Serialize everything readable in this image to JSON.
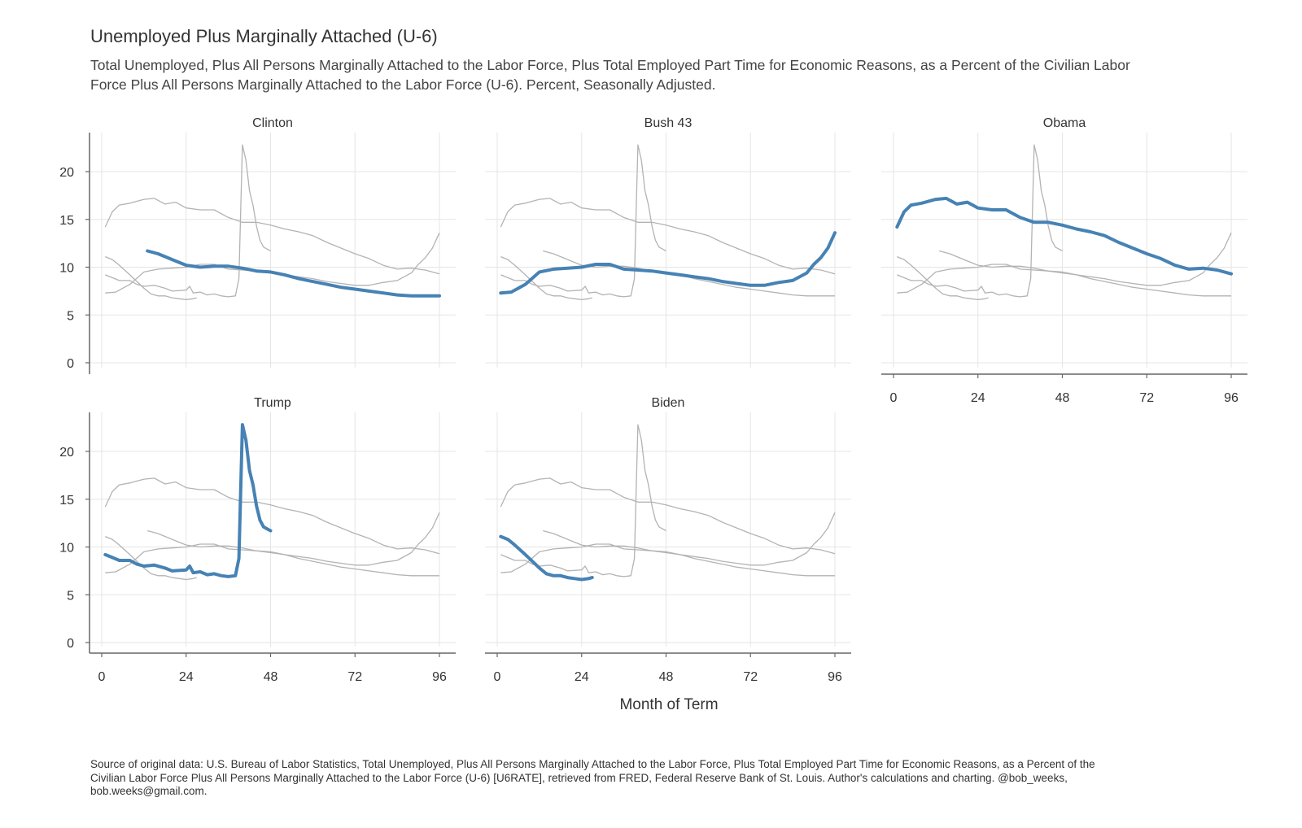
{
  "title": "Unemployed Plus Marginally Attached (U-6)",
  "subtitle": "Total Unemployed, Plus All Persons Marginally Attached to the Labor Force, Plus Total Employed Part Time for Economic Reasons, as a Percent of the Civilian Labor Force Plus All Persons Marginally Attached to the Labor Force (U-6). Percent, Seasonally Adjusted.",
  "caption": "Source of original data: U.S. Bureau of Labor Statistics, Total Unemployed, Plus All Persons Marginally Attached to the Labor Force, Plus Total Employed Part Time for Economic Reasons, as a Percent of the Civilian Labor Force Plus All Persons Marginally Attached to the Labor Force (U-6) [U6RATE], retrieved from FRED, Federal Reserve Bank of St. Louis. Author's calculations and charting. @bob_weeks, bob.weeks@gmail.com.",
  "chart_data": {
    "type": "line",
    "xlabel": "Month of Term",
    "ylabel": "",
    "xlim": [
      0,
      96
    ],
    "ylim": [
      0,
      23
    ],
    "x_ticks": [
      0,
      24,
      48,
      72,
      96
    ],
    "y_ticks": [
      0,
      5,
      10,
      15,
      20
    ],
    "highlight_color": "#4682b4",
    "background_color": "#b3b3b3",
    "panels": [
      "Clinton",
      "Bush 43",
      "Obama",
      "Trump",
      "Biden"
    ],
    "series": [
      {
        "name": "Clinton",
        "x": [
          13,
          16,
          20,
          24,
          28,
          32,
          36,
          40,
          44,
          48,
          52,
          56,
          60,
          64,
          68,
          72,
          76,
          80,
          84,
          88,
          92,
          96
        ],
        "values": [
          11.7,
          11.4,
          10.8,
          10.2,
          10.0,
          10.1,
          10.1,
          9.9,
          9.6,
          9.5,
          9.2,
          8.8,
          8.5,
          8.2,
          7.9,
          7.7,
          7.5,
          7.3,
          7.1,
          7.0,
          7.0,
          7.0
        ]
      },
      {
        "name": "Bush 43",
        "x": [
          1,
          4,
          8,
          12,
          16,
          20,
          24,
          28,
          32,
          36,
          40,
          44,
          48,
          52,
          56,
          60,
          64,
          68,
          72,
          76,
          80,
          84,
          88,
          90,
          92,
          94,
          96
        ],
        "values": [
          7.3,
          7.4,
          8.2,
          9.5,
          9.8,
          9.9,
          10.0,
          10.3,
          10.3,
          9.8,
          9.7,
          9.6,
          9.4,
          9.2,
          9.0,
          8.8,
          8.5,
          8.3,
          8.1,
          8.1,
          8.4,
          8.6,
          9.4,
          10.3,
          11.0,
          12.0,
          13.6
        ]
      },
      {
        "name": "Obama",
        "x": [
          1,
          3,
          5,
          8,
          12,
          15,
          18,
          21,
          24,
          28,
          32,
          36,
          40,
          44,
          48,
          52,
          56,
          60,
          64,
          68,
          72,
          76,
          80,
          84,
          88,
          92,
          96
        ],
        "values": [
          14.2,
          15.8,
          16.5,
          16.7,
          17.1,
          17.2,
          16.6,
          16.8,
          16.2,
          16.0,
          16.0,
          15.2,
          14.7,
          14.7,
          14.4,
          14.0,
          13.7,
          13.3,
          12.6,
          12.0,
          11.4,
          10.9,
          10.2,
          9.8,
          9.9,
          9.7,
          9.3
        ]
      },
      {
        "name": "Trump",
        "x": [
          1,
          3,
          5,
          8,
          10,
          12,
          15,
          18,
          20,
          24,
          25,
          26,
          28,
          30,
          32,
          34,
          36,
          38,
          39,
          40,
          41,
          42,
          43,
          44,
          45,
          46,
          47,
          48
        ],
        "values": [
          9.2,
          8.9,
          8.6,
          8.6,
          8.2,
          8.0,
          8.1,
          7.8,
          7.5,
          7.6,
          8.0,
          7.3,
          7.4,
          7.1,
          7.2,
          7.0,
          6.9,
          7.0,
          8.8,
          22.8,
          21.2,
          18.0,
          16.5,
          14.3,
          12.8,
          12.1,
          11.9,
          11.7
        ]
      },
      {
        "name": "Biden",
        "x": [
          1,
          3,
          5,
          8,
          10,
          12,
          14,
          16,
          18,
          20,
          22,
          24,
          26,
          27
        ],
        "values": [
          11.1,
          10.8,
          10.2,
          9.2,
          8.5,
          7.8,
          7.2,
          7.0,
          7.0,
          6.8,
          6.7,
          6.6,
          6.7,
          6.8
        ]
      }
    ]
  }
}
